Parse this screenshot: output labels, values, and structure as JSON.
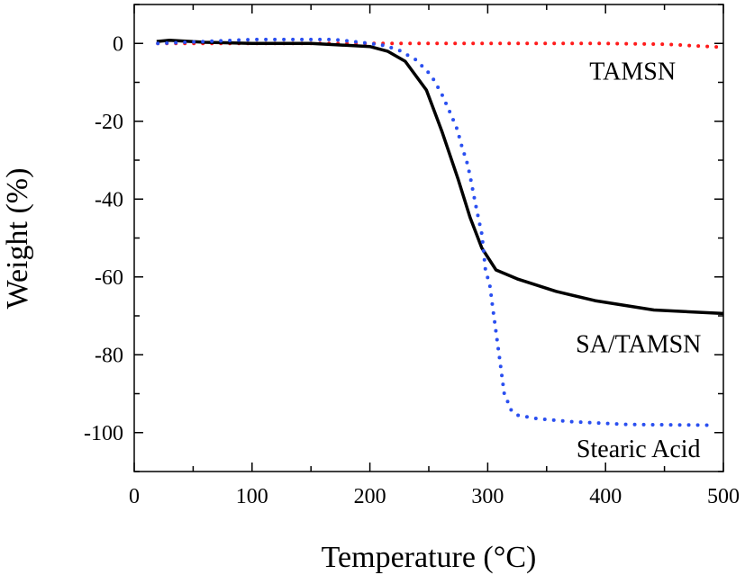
{
  "chart_data": {
    "type": "line",
    "xlabel": "Temperature (°C)",
    "ylabel": "Weight (%)",
    "xlim": [
      0,
      500
    ],
    "ylim": [
      -110,
      10
    ],
    "xticks": [
      0,
      100,
      200,
      300,
      400,
      500
    ],
    "yticks": [
      0,
      -20,
      -40,
      -60,
      -80,
      -100
    ],
    "grid": false,
    "series": [
      {
        "name": "TAMSN",
        "color": "#ff1a1a",
        "style": "dotted",
        "x": [
          20,
          100,
          200,
          300,
          400,
          450,
          500
        ],
        "y": [
          0,
          0,
          0,
          0,
          0,
          -0.2,
          -1.0
        ]
      },
      {
        "name": "SA/TAMSN",
        "color": "#000000",
        "style": "solid",
        "x": [
          19,
          30,
          60,
          100,
          150,
          200,
          215,
          230,
          248,
          261,
          275,
          285,
          295,
          307,
          325,
          358,
          391,
          441,
          500
        ],
        "y": [
          0.5,
          0.8,
          0.3,
          0,
          0,
          -0.8,
          -2,
          -4.6,
          -12,
          -22.5,
          -35,
          -44.7,
          -52.6,
          -58.2,
          -60.5,
          -63.7,
          -66.1,
          -68.5,
          -69.4
        ]
      },
      {
        "name": "Stearic Acid",
        "color": "#2a4ff0",
        "style": "dotted",
        "x": [
          20,
          60,
          100,
          170,
          200,
          212,
          225,
          239,
          252,
          261,
          268,
          274,
          278,
          283,
          286,
          289,
          292,
          295,
          298,
          302,
          304,
          306,
          308,
          310,
          312,
          314,
          320,
          325,
          342,
          371,
          418,
          488
        ],
        "y": [
          0,
          0.5,
          1,
          1,
          0,
          -0.5,
          -1.8,
          -4.2,
          -8.2,
          -13,
          -17.7,
          -22,
          -26.4,
          -31.2,
          -35.6,
          -40.3,
          -44.7,
          -49,
          -58,
          -62.5,
          -67.3,
          -71.7,
          -76.4,
          -80.8,
          -85.4,
          -89.9,
          -94.3,
          -95.5,
          -96.4,
          -97.2,
          -97.9,
          -98.1
        ]
      }
    ],
    "annotations": [
      {
        "text": "TAMSN",
        "x": 400,
        "y": -7
      },
      {
        "text": "SA/TAMSN",
        "x": 405,
        "y": -77
      },
      {
        "text": "Stearic Acid",
        "x": 405,
        "y": -104
      }
    ]
  }
}
